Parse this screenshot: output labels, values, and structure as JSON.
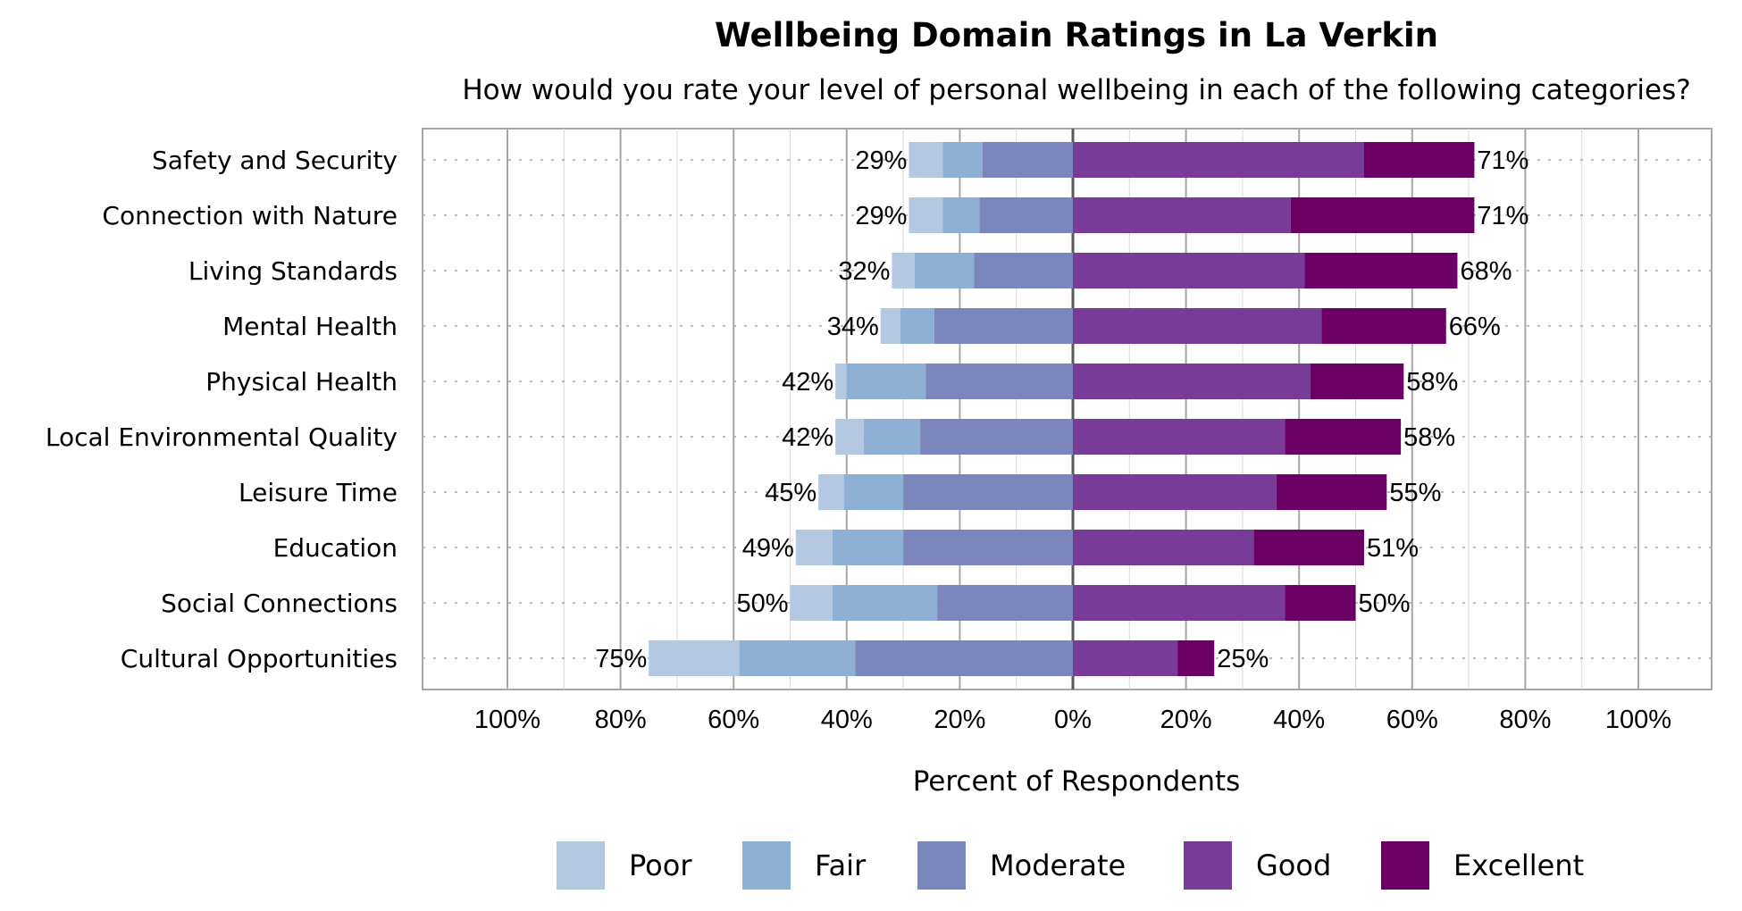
{
  "chart_data": {
    "type": "bar",
    "orientation": "horizontal",
    "stacking": "diverging",
    "title": "Wellbeing Domain Ratings in La Verkin",
    "subtitle": "How would you rate your level of personal wellbeing in each of the following categories?",
    "xlabel": "Percent of Respondents",
    "ylabel": "",
    "xlim": [
      -100,
      100
    ],
    "x_ticks": [
      -100,
      -80,
      -60,
      -40,
      -20,
      0,
      20,
      40,
      60,
      80,
      100
    ],
    "x_tick_labels": [
      "100%",
      "80%",
      "60%",
      "40%",
      "20%",
      "0%",
      "20%",
      "40%",
      "60%",
      "80%",
      "100%"
    ],
    "grid": true,
    "legend_position": "bottom",
    "categories": [
      "Safety and Security",
      "Connection with Nature",
      "Living Standards",
      "Mental Health",
      "Physical Health",
      "Local Environmental Quality",
      "Leisure Time",
      "Education",
      "Social Connections",
      "Cultural Opportunities"
    ],
    "series": [
      {
        "name": "Poor",
        "color": "#b4c8e1",
        "side": "negative",
        "values": [
          6,
          6,
          4,
          3.5,
          2,
          5,
          4.5,
          6.5,
          7.5,
          16
        ]
      },
      {
        "name": "Fair",
        "color": "#8eb0d5",
        "side": "negative",
        "values": [
          7,
          6.5,
          10.5,
          6,
          14,
          10,
          10.5,
          12.5,
          18.5,
          20.5
        ]
      },
      {
        "name": "Moderate",
        "color": "#7b86bd",
        "side": "negative",
        "values": [
          16,
          16.5,
          17.5,
          24.5,
          26,
          27,
          30,
          30,
          24,
          38.5
        ]
      },
      {
        "name": "Good",
        "color": "#783c98",
        "side": "positive",
        "values": [
          51.5,
          38.5,
          41,
          44,
          42,
          37.5,
          36,
          32,
          37.5,
          18.5
        ]
      },
      {
        "name": "Excellent",
        "color": "#6b0064",
        "side": "positive",
        "values": [
          19.5,
          32.5,
          27,
          22,
          16.5,
          20.5,
          19.5,
          19.5,
          12.5,
          6.5
        ]
      }
    ],
    "negative_totals": [
      "29%",
      "29%",
      "32%",
      "34%",
      "42%",
      "42%",
      "45%",
      "49%",
      "50%",
      "75%"
    ],
    "positive_totals": [
      "71%",
      "71%",
      "68%",
      "66%",
      "58%",
      "58%",
      "55%",
      "51%",
      "50%",
      "25%"
    ]
  }
}
